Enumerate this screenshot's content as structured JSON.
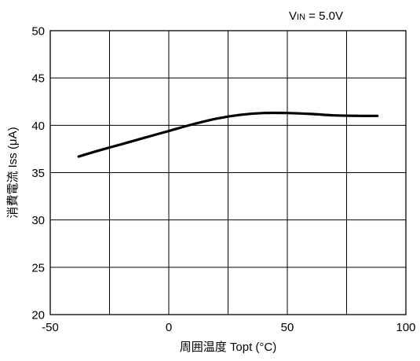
{
  "chart_data": {
    "type": "line",
    "annotation": {
      "prefix": "V",
      "subscript": "IN",
      "suffix": " = 5.0V"
    },
    "xlabel": "周囲温度 Topt (°C)",
    "ylabel": "消費電流 Iss (μA)",
    "xlim": [
      -50,
      100
    ],
    "ylim": [
      20,
      50
    ],
    "x_ticks": [
      -50,
      0,
      50,
      100
    ],
    "y_ticks": [
      20,
      25,
      30,
      35,
      40,
      45,
      50
    ],
    "x_grid_step": 25,
    "grid": true,
    "series": [
      {
        "color": "#000000",
        "x": [
          -38,
          -30,
          -20,
          -10,
          0,
          10,
          20,
          30,
          40,
          50,
          60,
          70,
          80,
          88
        ],
        "y": [
          36.7,
          37.3,
          38.0,
          38.7,
          39.4,
          40.1,
          40.7,
          41.1,
          41.3,
          41.3,
          41.2,
          41.05,
          41.0,
          41.0
        ]
      }
    ]
  }
}
